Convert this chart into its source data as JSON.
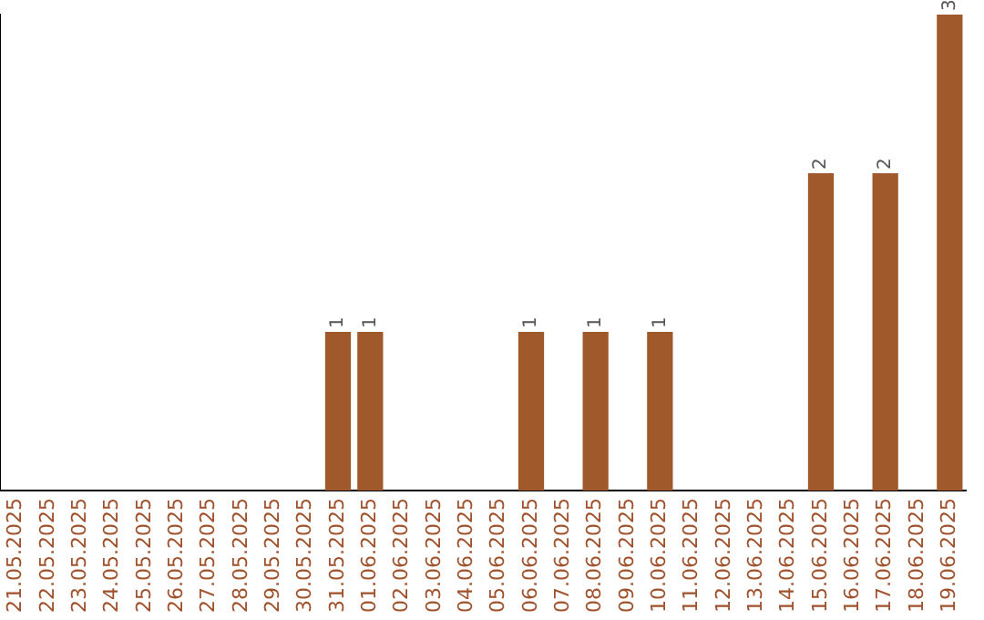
{
  "chart_data": {
    "type": "bar",
    "categories": [
      "21.05.2025",
      "22.05.2025",
      "23.05.2025",
      "24.05.2025",
      "25.05.2025",
      "26.05.2025",
      "27.05.2025",
      "28.05.2025",
      "29.05.2025",
      "30.05.2025",
      "31.05.2025",
      "01.06.2025",
      "02.06.2025",
      "03.06.2025",
      "04.06.2025",
      "05.06.2025",
      "06.06.2025",
      "07.06.2025",
      "08.06.2025",
      "09.06.2025",
      "10.06.2025",
      "11.06.2025",
      "12.06.2025",
      "13.06.2025",
      "14.06.2025",
      "15.06.2025",
      "16.06.2025",
      "17.06.2025",
      "18.06.2025",
      "19.06.2025"
    ],
    "values": [
      0,
      0,
      0,
      0,
      0,
      0,
      0,
      0,
      0,
      0,
      1,
      1,
      0,
      0,
      0,
      0,
      1,
      0,
      1,
      0,
      1,
      0,
      0,
      0,
      0,
      2,
      0,
      2,
      0,
      3
    ],
    "value_labels": [
      null,
      null,
      null,
      null,
      null,
      null,
      null,
      null,
      null,
      null,
      "1",
      "1",
      null,
      null,
      null,
      null,
      "1",
      null,
      "1",
      null,
      "1",
      null,
      null,
      null,
      null,
      "2",
      null,
      "2",
      null,
      "3"
    ],
    "color": "#a0592a",
    "grid": false,
    "legend": false,
    "tick_labels": "x"
  }
}
